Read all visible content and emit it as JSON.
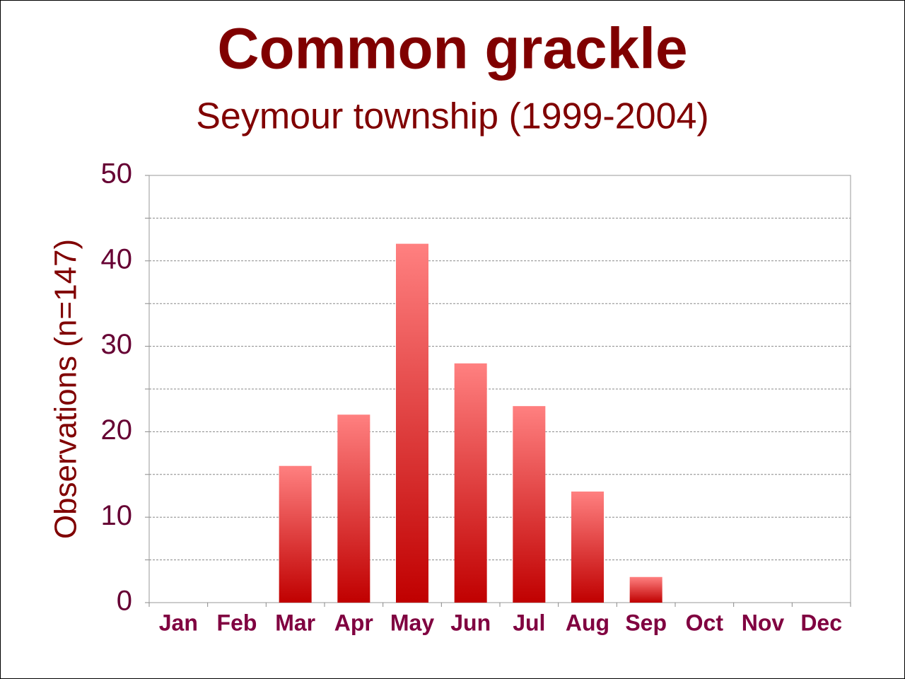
{
  "chart_data": {
    "type": "bar",
    "title": "Common grackle",
    "subtitle": "Seymour township (1999-2004)",
    "y_label": "Observations (n=147)",
    "categories": [
      "Jan",
      "Feb",
      "Mar",
      "Apr",
      "May",
      "Jun",
      "Jul",
      "Aug",
      "Sep",
      "Oct",
      "Nov",
      "Dec"
    ],
    "values": [
      0,
      0,
      16,
      22,
      42,
      28,
      23,
      13,
      3,
      0,
      0,
      0
    ],
    "gradient": [
      "#ff8080",
      "#c00000"
    ],
    "ylim": [
      0,
      50
    ],
    "yticks": [
      0,
      10,
      20,
      30,
      40,
      50
    ],
    "minor_yticks": [
      5,
      15,
      25,
      35,
      45
    ],
    "grid": true
  }
}
